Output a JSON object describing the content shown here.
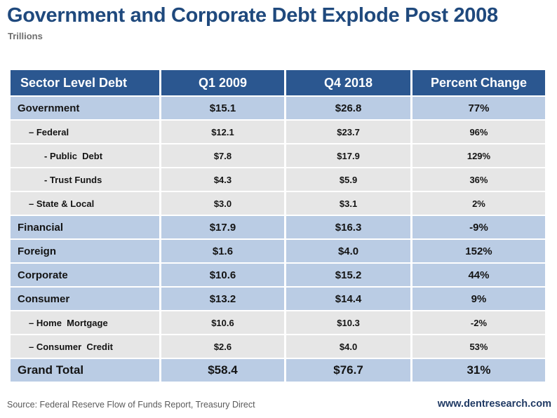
{
  "header": {
    "title": "Government and Corporate Debt Explode Post 2008",
    "subtitle": "Trillions"
  },
  "footer": {
    "source": "Source: Federal Reserve Flow of Funds Report, Treasury Direct",
    "website": "www.dentresearch.com"
  },
  "colors": {
    "header_bg": "#2B5790",
    "header_text": "#FFFFFF",
    "main_row_bg": "#BACCE4",
    "sub_row_bg": "#E6E6E6",
    "title_color": "#1F497D",
    "website_color": "#203A64",
    "muted_text": "#5A5A5A"
  },
  "chart_data": {
    "type": "table",
    "title": "Government and Corporate Debt Explode Post 2008",
    "units": "Trillions",
    "legend_position": "none",
    "columns": [
      "Sector Level Debt",
      "Q1 2009",
      "Q4 2018",
      "Percent Change"
    ],
    "rows": [
      {
        "label": "Government",
        "indent": 0,
        "style": "main",
        "values": [
          "$15.1",
          "$26.8",
          "77%"
        ]
      },
      {
        "label": "– Federal",
        "indent": 1,
        "style": "sub",
        "values": [
          "$12.1",
          "$23.7",
          "96%"
        ]
      },
      {
        "label": "- Public  Debt",
        "indent": 2,
        "style": "sub",
        "values": [
          "$7.8",
          "$17.9",
          "129%"
        ]
      },
      {
        "label": "- Trust Funds",
        "indent": 2,
        "style": "sub",
        "values": [
          "$4.3",
          "$5.9",
          "36%"
        ]
      },
      {
        "label": "– State & Local",
        "indent": 1,
        "style": "sub",
        "values": [
          "$3.0",
          "$3.1",
          "2%"
        ]
      },
      {
        "label": "Financial",
        "indent": 0,
        "style": "main",
        "values": [
          "$17.9",
          "$16.3",
          "-9%"
        ]
      },
      {
        "label": "Foreign",
        "indent": 0,
        "style": "main",
        "values": [
          "$1.6",
          "$4.0",
          "152%"
        ]
      },
      {
        "label": "Corporate",
        "indent": 0,
        "style": "main",
        "values": [
          "$10.6",
          "$15.2",
          "44%"
        ]
      },
      {
        "label": "Consumer",
        "indent": 0,
        "style": "main",
        "values": [
          "$13.2",
          "$14.4",
          "9%"
        ]
      },
      {
        "label": "– Home  Mortgage",
        "indent": 1,
        "style": "sub",
        "values": [
          "$10.6",
          "$10.3",
          "-2%"
        ]
      },
      {
        "label": "– Consumer  Credit",
        "indent": 1,
        "style": "sub",
        "values": [
          "$2.6",
          "$4.0",
          "53%"
        ]
      },
      {
        "label": "Grand Total",
        "indent": 0,
        "style": "total",
        "values": [
          "$58.4",
          "$76.7",
          "31%"
        ]
      }
    ],
    "column_widths_pct": [
      27.8,
      23.4,
      23.6,
      25.2
    ]
  }
}
